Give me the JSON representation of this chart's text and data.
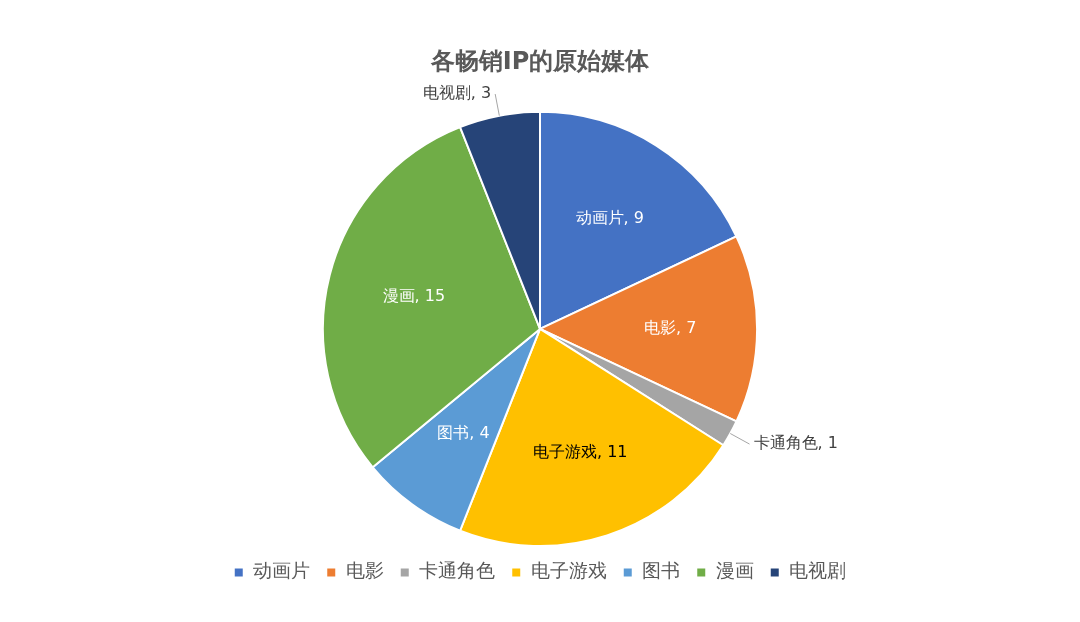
{
  "chart_data": {
    "type": "pie",
    "title": "各畅销IP的原始媒体",
    "categories": [
      "动画片",
      "电影",
      "卡通角色",
      "电子游戏",
      "图书",
      "漫画",
      "电视剧"
    ],
    "values": [
      9,
      7,
      1,
      11,
      4,
      15,
      3
    ],
    "value_labels": [
      "动画片, 9",
      "电影, 7",
      "卡通角色, 1",
      "电子游戏, 11",
      "图书, 4",
      "漫画, 15",
      "电视剧, 3"
    ],
    "colors": [
      "#4472c4",
      "#ed7d31",
      "#a5a5a5",
      "#ffc000",
      "#5b9bd5",
      "#70ad47",
      "#264478"
    ],
    "legend": "bottom"
  }
}
